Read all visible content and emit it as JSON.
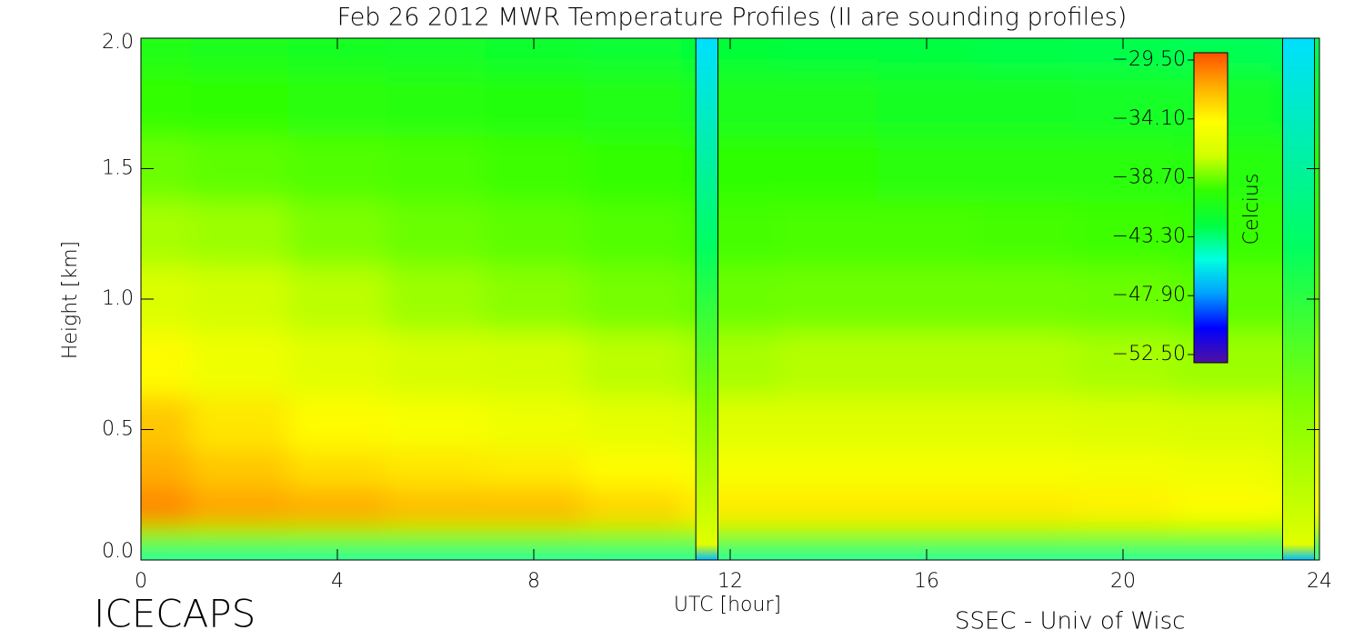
{
  "chart_data": {
    "type": "heatmap",
    "title": "Feb 26 2012 MWR Temperature Profiles (II are sounding profiles)",
    "xlabel": "UTC [hour]",
    "ylabel": "Height [km]",
    "footer_left": "ICECAPS",
    "footer_right": "SSEC - Univ of Wisc",
    "colorbar_label": "Celcius",
    "x": [
      0,
      2,
      4,
      6,
      8,
      10,
      12,
      14,
      16,
      18,
      20,
      22,
      24
    ],
    "y": [
      0,
      0.05,
      0.2,
      0.35,
      0.5,
      0.75,
      1.0,
      1.25,
      1.5,
      1.75,
      2.0
    ],
    "z": [
      [
        -44,
        -44,
        -44,
        -44,
        -44,
        -44,
        -44,
        -44,
        -44,
        -44,
        -44,
        -44,
        -44
      ],
      [
        -39,
        -39,
        -39,
        -39,
        -39,
        -39,
        -39,
        -39,
        -39,
        -39,
        -39,
        -39,
        -39
      ],
      [
        -31,
        -31.8,
        -32,
        -32.5,
        -32.5,
        -33.3,
        -34,
        -34,
        -34,
        -34,
        -34.2,
        -34.5,
        -35
      ],
      [
        -32,
        -32.8,
        -33.5,
        -33.8,
        -34,
        -34.5,
        -35,
        -35,
        -35,
        -35,
        -35.2,
        -35.5,
        -36
      ],
      [
        -32.8,
        -33.8,
        -34.5,
        -35,
        -35.5,
        -36,
        -36.3,
        -36.3,
        -36.3,
        -36.3,
        -36.5,
        -36.8,
        -37
      ],
      [
        -34.5,
        -35.5,
        -36.2,
        -36.8,
        -37,
        -37.5,
        -37.8,
        -37.6,
        -37.6,
        -37.6,
        -37.8,
        -38,
        -38
      ],
      [
        -36.5,
        -37,
        -37.5,
        -38,
        -38.3,
        -38.6,
        -38.8,
        -38.7,
        -38.7,
        -38.7,
        -38.8,
        -39,
        -39
      ],
      [
        -37.8,
        -38,
        -38.5,
        -38.8,
        -39,
        -39.2,
        -39.4,
        -39.3,
        -39.3,
        -39.4,
        -39.5,
        -39.6,
        -39.6
      ],
      [
        -38.8,
        -39,
        -39.2,
        -39.3,
        -39.5,
        -39.7,
        -39.9,
        -39.9,
        -40,
        -40,
        -40.1,
        -40.2,
        -40.2
      ],
      [
        -39.7,
        -39.8,
        -40,
        -40.2,
        -40.4,
        -40.6,
        -40.8,
        -40.9,
        -41,
        -41,
        -41.2,
        -41.3,
        -41.4
      ],
      [
        -40.5,
        -40.8,
        -41,
        -41.3,
        -41.5,
        -41.8,
        -42,
        -42.2,
        -42.3,
        -42.4,
        -42.5,
        -42.6,
        -42.7
      ]
    ],
    "soundings": [
      [
        11.3,
        11.75
      ],
      [
        23.25,
        23.9
      ]
    ],
    "xlim": [
      0,
      24
    ],
    "ylim": [
      0,
      2
    ],
    "xticks": [
      0,
      4,
      8,
      12,
      16,
      20,
      24
    ],
    "yticks": [
      {
        "value": 0,
        "label": "0.0"
      },
      {
        "value": 0.5,
        "label": "0.5"
      },
      {
        "value": 1,
        "label": "1.0"
      },
      {
        "value": 1.5,
        "label": "1.5"
      },
      {
        "value": 2,
        "label": "2.0"
      }
    ],
    "clim": [
      -52.5,
      -29.5
    ],
    "cticks": [
      {
        "value": -29.5,
        "label": "−29.50"
      },
      {
        "value": -34.1,
        "label": "−34.10"
      },
      {
        "value": -38.7,
        "label": "−38.70"
      },
      {
        "value": -43.3,
        "label": "−43.30"
      },
      {
        "value": -47.9,
        "label": "−47.90"
      },
      {
        "value": -52.5,
        "label": "−52.50"
      }
    ],
    "colormap": [
      "#5010a0",
      "#0000ff",
      "#00a0ff",
      "#00ffe0",
      "#00ff40",
      "#30ff00",
      "#d0ff00",
      "#ffff00",
      "#ffb000",
      "#ff5000"
    ]
  }
}
